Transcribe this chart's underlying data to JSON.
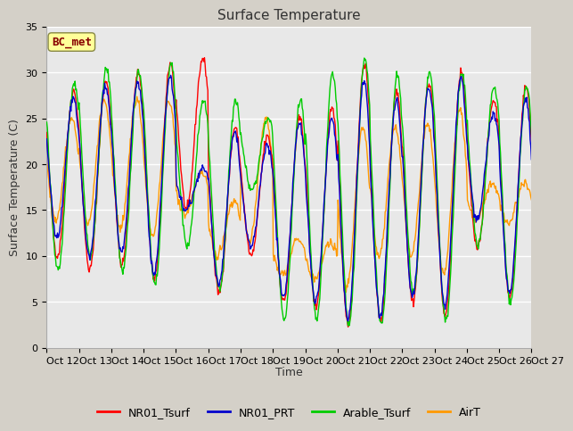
{
  "title": "Surface Temperature",
  "ylabel": "Surface Temperature (C)",
  "xlabel": "Time",
  "annotation": "BC_met",
  "ylim": [
    0,
    35
  ],
  "n_days": 15,
  "x_tick_labels": [
    "Oct 12",
    "Oct 13",
    "Oct 14",
    "Oct 15",
    "Oct 16",
    "Oct 17",
    "Oct 18",
    "Oct 19",
    "Oct 20",
    "Oct 21",
    "Oct 22",
    "Oct 23",
    "Oct 24",
    "Oct 25",
    "Oct 26",
    "Oct 27"
  ],
  "yticks": [
    0,
    5,
    10,
    15,
    20,
    25,
    30,
    35
  ],
  "series_colors": {
    "NR01_Tsurf": "#ff0000",
    "NR01_PRT": "#0000cc",
    "Arable_Tsurf": "#00cc00",
    "AirT": "#ff9900"
  },
  "fig_bg": "#d4d0c8",
  "plot_bg": "#e8e8e8",
  "annotation_bg": "#ffff99",
  "annotation_fg": "#880000",
  "annotation_edge": "#888844",
  "title_fontsize": 11,
  "axis_fontsize": 9,
  "tick_fontsize": 8,
  "legend_fontsize": 9,
  "day_peaks_red": [
    28,
    29,
    30,
    31,
    31.5,
    24,
    23,
    25,
    26,
    31,
    28,
    29,
    30,
    27,
    28.5
  ],
  "day_mins_red": [
    10,
    8.5,
    9,
    7.5,
    15,
    6,
    10,
    5,
    4.5,
    2.5,
    3,
    5,
    3.5,
    11,
    5.5
  ],
  "day_peaks_blue": [
    27,
    28.5,
    29,
    29.5,
    19.5,
    23.5,
    22,
    24.5,
    25,
    29,
    27,
    28.5,
    29.5,
    25.5,
    27
  ],
  "day_mins_blue": [
    12,
    10,
    10.5,
    8,
    15,
    7,
    11,
    5.5,
    5,
    3,
    3.5,
    5.5,
    4.5,
    14,
    6
  ],
  "day_peaks_green": [
    29,
    30.5,
    30,
    31,
    27,
    27,
    25,
    27,
    30,
    31.5,
    29.5,
    30,
    30,
    28.5,
    28.5
  ],
  "day_mins_green": [
    8.5,
    10,
    8.5,
    7,
    11,
    6.5,
    17,
    3,
    3,
    2.5,
    2.5,
    6,
    3,
    11,
    5
  ],
  "day_peaks_orange": [
    25,
    27,
    27,
    27,
    19,
    16,
    25,
    12,
    11.5,
    24,
    24,
    24.5,
    26,
    18,
    18
  ],
  "day_mins_orange": [
    14,
    13.5,
    13,
    12,
    14.5,
    10,
    11.5,
    8,
    7.5,
    6.5,
    10,
    10,
    8,
    14,
    13.5
  ]
}
